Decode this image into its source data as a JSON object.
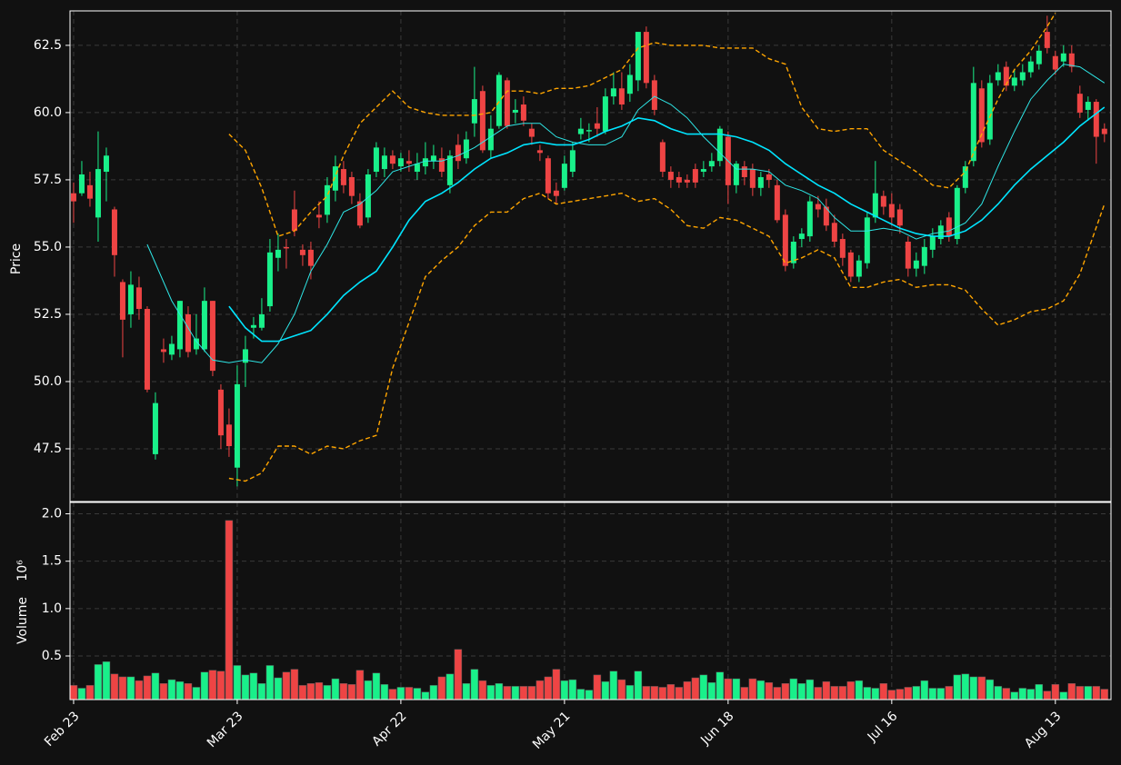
{
  "chart_data": [
    {
      "type": "candlestick",
      "ylabel": "Price",
      "grid": true,
      "ylim": [
        45.54,
        63.78
      ],
      "yticks": [
        47.5,
        {
          "value": 50,
          "label": "50.0"
        },
        52.5,
        {
          "value": 55,
          "label": "55.0"
        },
        57.5,
        {
          "value": 60,
          "label": "60.0"
        },
        62.5
      ],
      "xlim": [
        -0.44,
        126.8
      ],
      "up_color": "#19f08a",
      "down_color": "#ee4444",
      "open": [
        57.0,
        57.0,
        57.3,
        56.1,
        57.8,
        56.4,
        53.7,
        52.5,
        53.5,
        52.7,
        47.3,
        51.2,
        51.0,
        51.2,
        52.5,
        51.2,
        51.2,
        53.0,
        49.7,
        48.4,
        46.8,
        50.7,
        52.0,
        52.0,
        52.8,
        54.6,
        55.0,
        56.4,
        54.9,
        54.9,
        56.2,
        56.2,
        57.1,
        57.9,
        57.6,
        56.7,
        56.1,
        57.8,
        57.9,
        58.4,
        58.0,
        58.2,
        57.8,
        58.0,
        58.2,
        58.3,
        57.3,
        58.8,
        58.3,
        59.6,
        60.8,
        58.6,
        59.5,
        61.2,
        60.0,
        60.3,
        59.4,
        58.6,
        58.3,
        57.1,
        57.2,
        57.8,
        59.2,
        59.3,
        59.6,
        59.3,
        60.6,
        60.9,
        60.7,
        61.2,
        63.0,
        61.2,
        58.9,
        57.8,
        57.6,
        57.5,
        57.9,
        57.8,
        58.0,
        58.2,
        59.1,
        57.3,
        58.0,
        57.9,
        57.2,
        57.7,
        57.3,
        56.2,
        54.4,
        55.3,
        55.4,
        56.6,
        56.5,
        55.9,
        55.3,
        54.8,
        53.9,
        54.4,
        56.1,
        56.9,
        56.6,
        56.4,
        55.2,
        54.2,
        54.3,
        54.9,
        55.3,
        56.1,
        55.3,
        57.2,
        58.2,
        60.9,
        59.0,
        61.2,
        61.7,
        61.0,
        61.2,
        61.5,
        61.8,
        63.0,
        62.1,
        61.9,
        62.2,
        60.7,
        60.1,
        60.4,
        59.4
      ],
      "high": [
        57.4,
        58.2,
        57.8,
        59.3,
        58.7,
        56.5,
        53.8,
        54.1,
        53.9,
        52.8,
        49.6,
        51.6,
        51.7,
        53.0,
        52.8,
        52.5,
        53.5,
        53.0,
        49.9,
        49.0,
        50.6,
        51.7,
        52.4,
        53.1,
        55.3,
        55.5,
        55.3,
        57.1,
        55.1,
        55.2,
        56.7,
        57.6,
        58.4,
        58.2,
        57.8,
        57.0,
        57.9,
        58.9,
        58.7,
        58.6,
        58.5,
        58.6,
        58.5,
        58.9,
        58.8,
        58.7,
        58.6,
        59.2,
        59.3,
        61.7,
        61.0,
        59.9,
        61.5,
        61.3,
        60.5,
        60.6,
        59.6,
        58.8,
        58.4,
        57.4,
        58.4,
        58.9,
        59.8,
        59.6,
        60.2,
        60.9,
        61.5,
        61.5,
        61.8,
        63.0,
        63.2,
        61.4,
        59.0,
        58.0,
        57.8,
        57.7,
        58.1,
        58.2,
        58.5,
        59.5,
        59.3,
        58.2,
        58.2,
        58.1,
        57.8,
        57.9,
        57.5,
        56.4,
        55.4,
        55.7,
        56.9,
        56.9,
        56.8,
        56.2,
        55.5,
        54.9,
        54.7,
        56.3,
        58.2,
        57.1,
        57.0,
        56.6,
        55.4,
        54.8,
        55.3,
        55.7,
        56.0,
        56.3,
        57.3,
        58.2,
        61.7,
        61.2,
        61.4,
        61.8,
        61.9,
        61.6,
        61.8,
        62.1,
        62.5,
        63.6,
        62.3,
        62.5,
        62.5,
        61.0,
        60.6,
        60.5,
        59.6
      ],
      "low": [
        55.9,
        56.9,
        56.5,
        55.2,
        56.7,
        53.9,
        50.9,
        52.0,
        52.3,
        49.6,
        47.1,
        50.7,
        50.8,
        50.9,
        50.9,
        51.0,
        51.1,
        50.2,
        47.5,
        47.2,
        46.1,
        49.8,
        51.6,
        51.9,
        52.6,
        54.1,
        54.2,
        55.4,
        54.3,
        53.8,
        55.7,
        55.9,
        56.7,
        57.0,
        56.6,
        55.7,
        55.9,
        57.6,
        57.6,
        57.9,
        57.8,
        57.8,
        57.5,
        57.7,
        57.9,
        57.6,
        57.0,
        57.9,
        58.1,
        59.1,
        58.5,
        58.3,
        59.4,
        59.4,
        59.6,
        59.5,
        58.8,
        58.2,
        56.8,
        56.6,
        57.1,
        57.6,
        59.0,
        58.9,
        59.1,
        59.2,
        60.3,
        60.1,
        60.4,
        60.8,
        60.9,
        59.9,
        57.6,
        57.2,
        57.2,
        57.2,
        57.2,
        57.6,
        57.8,
        58.0,
        56.6,
        57.0,
        57.3,
        56.9,
        56.9,
        57.2,
        55.9,
        54.1,
        54.2,
        55.0,
        55.2,
        56.1,
        55.6,
        55.0,
        54.3,
        53.7,
        53.7,
        54.2,
        55.9,
        56.2,
        55.8,
        55.5,
        53.9,
        53.9,
        54.0,
        54.6,
        55.1,
        55.2,
        55.1,
        57.0,
        58.0,
        58.7,
        58.8,
        61.0,
        60.8,
        60.8,
        61.0,
        61.3,
        61.6,
        62.2,
        61.4,
        61.7,
        61.5,
        59.8,
        59.7,
        58.1,
        58.9
      ],
      "close": [
        56.7,
        57.7,
        56.8,
        57.9,
        58.4,
        54.7,
        52.3,
        53.6,
        52.7,
        49.7,
        49.2,
        51.1,
        51.4,
        53.0,
        51.1,
        51.6,
        53.0,
        50.4,
        48.0,
        47.6,
        49.9,
        51.2,
        52.1,
        52.5,
        54.8,
        54.9,
        54.95,
        55.6,
        54.7,
        54.3,
        56.1,
        57.3,
        58.0,
        57.3,
        56.9,
        55.8,
        57.7,
        58.7,
        58.4,
        58.1,
        58.3,
        58.1,
        58.1,
        58.3,
        58.4,
        57.8,
        58.4,
        58.2,
        59.0,
        60.5,
        58.6,
        59.4,
        61.4,
        59.5,
        60.1,
        59.7,
        59.1,
        58.5,
        57.0,
        56.9,
        58.1,
        58.6,
        59.4,
        59.35,
        59.4,
        60.6,
        60.9,
        60.3,
        61.4,
        63.0,
        61.1,
        60.1,
        57.8,
        57.5,
        57.4,
        57.4,
        57.4,
        57.9,
        58.2,
        59.4,
        57.3,
        58.1,
        57.6,
        57.2,
        57.6,
        57.5,
        56.0,
        54.3,
        55.2,
        55.5,
        56.7,
        56.4,
        55.8,
        55.2,
        54.6,
        53.9,
        54.5,
        56.1,
        57.0,
        56.5,
        56.1,
        55.8,
        54.2,
        54.5,
        55.0,
        55.4,
        55.8,
        55.4,
        57.2,
        58.0,
        61.1,
        58.9,
        61.1,
        61.5,
        61.0,
        61.3,
        61.5,
        61.9,
        62.3,
        62.4,
        61.6,
        62.2,
        61.7,
        60.0,
        60.4,
        59.1,
        59.2
      ],
      "lines": [
        {
          "color": "#2ee6e6",
          "dashed": false,
          "x": [
            9,
            12,
            15,
            17,
            19,
            21,
            23,
            25,
            27,
            29,
            31,
            33,
            35,
            37,
            39,
            41,
            43,
            45,
            47,
            49,
            51,
            53,
            55,
            57,
            59,
            61,
            63,
            65,
            67,
            69,
            71,
            73,
            75,
            77,
            79,
            81,
            83,
            85,
            87,
            89,
            91,
            93,
            95,
            97,
            99,
            101,
            103,
            105,
            107,
            109,
            111,
            113,
            115,
            117,
            119,
            121,
            123,
            126
          ],
          "values": [
            55.1,
            53.0,
            51.5,
            50.8,
            50.7,
            50.8,
            50.7,
            51.4,
            52.5,
            54.1,
            55.1,
            56.3,
            56.6,
            57.1,
            57.8,
            58.0,
            58.2,
            58.2,
            58.4,
            58.7,
            59.1,
            59.5,
            59.6,
            59.6,
            59.1,
            58.9,
            58.8,
            58.8,
            59.1,
            60.1,
            60.6,
            60.3,
            59.8,
            59.1,
            58.5,
            57.9,
            57.9,
            57.8,
            57.3,
            57.1,
            56.8,
            56.1,
            55.6,
            55.6,
            55.7,
            55.6,
            55.3,
            55.5,
            55.6,
            55.9,
            56.6,
            58.0,
            59.3,
            60.5,
            61.2,
            61.8,
            61.7,
            61.1
          ]
        },
        {
          "color": "#00e5ff",
          "dashed": false,
          "x": [
            19,
            21,
            23,
            25,
            27,
            29,
            31,
            33,
            35,
            37,
            39,
            41,
            43,
            45,
            47,
            49,
            51,
            53,
            55,
            57,
            59,
            61,
            63,
            65,
            67,
            69,
            71,
            73,
            75,
            77,
            79,
            81,
            83,
            85,
            87,
            89,
            91,
            93,
            95,
            97,
            99,
            101,
            103,
            105,
            107,
            109,
            111,
            113,
            115,
            117,
            119,
            121,
            123,
            126
          ],
          "values": [
            52.8,
            52.0,
            51.5,
            51.5,
            51.7,
            51.9,
            52.5,
            53.2,
            53.7,
            54.1,
            55.0,
            56.0,
            56.7,
            57.0,
            57.4,
            57.9,
            58.3,
            58.5,
            58.8,
            58.9,
            58.8,
            58.8,
            59.0,
            59.3,
            59.5,
            59.8,
            59.7,
            59.4,
            59.2,
            59.2,
            59.2,
            59.1,
            58.9,
            58.6,
            58.1,
            57.7,
            57.3,
            57.0,
            56.6,
            56.3,
            56.0,
            55.7,
            55.5,
            55.4,
            55.4,
            55.6,
            56.0,
            56.6,
            57.3,
            57.9,
            58.4,
            58.9,
            59.5,
            60.2
          ]
        },
        {
          "color": "#ffa500",
          "dashed": true,
          "x": [
            19,
            21,
            23,
            25,
            27,
            29,
            31,
            33,
            35,
            37,
            39,
            41,
            43,
            45,
            47,
            49,
            51,
            53,
            55,
            57,
            59,
            61,
            63,
            65,
            67,
            69,
            71,
            73,
            75,
            77,
            79,
            81,
            83,
            85,
            87,
            89,
            91,
            93,
            95,
            97,
            99,
            101,
            103,
            105,
            107,
            109,
            111,
            113,
            115,
            117,
            119,
            120
          ],
          "values": [
            59.2,
            58.6,
            57.2,
            55.4,
            55.6,
            56.3,
            56.9,
            58.4,
            59.6,
            60.2,
            60.8,
            60.2,
            60.0,
            59.9,
            59.9,
            59.9,
            60.0,
            60.8,
            60.8,
            60.7,
            60.9,
            60.9,
            61.0,
            61.3,
            61.6,
            62.4,
            62.6,
            62.5,
            62.5,
            62.5,
            62.4,
            62.4,
            62.4,
            62.0,
            61.8,
            60.2,
            59.4,
            59.3,
            59.4,
            59.4,
            58.6,
            58.2,
            57.8,
            57.3,
            57.2,
            57.8,
            59.2,
            60.5,
            61.6,
            62.3,
            63.2,
            63.7
          ]
        },
        {
          "color": "#ffa500",
          "dashed": true,
          "x": [
            19,
            21,
            23,
            25,
            27,
            29,
            31,
            33,
            35,
            37,
            39,
            41,
            43,
            45,
            47,
            49,
            51,
            53,
            55,
            57,
            59,
            61,
            63,
            65,
            67,
            69,
            71,
            73,
            75,
            77,
            79,
            81,
            83,
            85,
            87,
            89,
            91,
            93,
            95,
            97,
            99,
            101,
            103,
            105,
            107,
            109,
            111,
            113,
            115,
            117,
            119,
            121,
            123,
            126
          ],
          "values": [
            46.4,
            46.3,
            46.6,
            47.6,
            47.6,
            47.3,
            47.6,
            47.5,
            47.8,
            48.0,
            50.5,
            52.2,
            53.9,
            54.5,
            55.0,
            55.8,
            56.3,
            56.3,
            56.8,
            57.0,
            56.6,
            56.7,
            56.8,
            56.9,
            57.0,
            56.7,
            56.8,
            56.4,
            55.8,
            55.7,
            56.1,
            56.0,
            55.7,
            55.4,
            54.4,
            54.6,
            54.9,
            54.6,
            53.5,
            53.5,
            53.7,
            53.8,
            53.5,
            53.6,
            53.6,
            53.4,
            52.7,
            52.1,
            52.3,
            52.6,
            52.7,
            53.0,
            54.0,
            56.6
          ]
        }
      ]
    },
    {
      "type": "bar",
      "ylabel": "Volume",
      "y_offset_label": "10⁶",
      "grid": true,
      "ylim": [
        0.04,
        2.12
      ],
      "yticks": [
        0.5,
        {
          "value": 1,
          "label": "1.0"
        },
        1.5,
        {
          "value": 2,
          "label": "2.0"
        }
      ],
      "xlim": [
        -0.44,
        126.8
      ],
      "xticks": [
        {
          "value": 0,
          "label": "Feb 23"
        },
        {
          "value": 20,
          "label": "Mar 23"
        },
        {
          "value": 40,
          "label": "Apr 22"
        },
        {
          "value": 60,
          "label": "May 21"
        },
        {
          "value": 80,
          "label": "Jun 18"
        },
        {
          "value": 100,
          "label": "Jul 16"
        },
        {
          "value": 120,
          "label": "Aug 13"
        }
      ],
      "values": [
        0.19,
        0.16,
        0.19,
        0.41,
        0.44,
        0.31,
        0.28,
        0.28,
        0.24,
        0.29,
        0.32,
        0.21,
        0.25,
        0.23,
        0.21,
        0.17,
        0.33,
        0.35,
        0.34,
        1.93,
        0.4,
        0.3,
        0.32,
        0.21,
        0.4,
        0.27,
        0.33,
        0.36,
        0.19,
        0.21,
        0.22,
        0.19,
        0.26,
        0.21,
        0.2,
        0.35,
        0.24,
        0.32,
        0.2,
        0.15,
        0.17,
        0.17,
        0.16,
        0.12,
        0.19,
        0.28,
        0.31,
        0.57,
        0.21,
        0.36,
        0.24,
        0.19,
        0.21,
        0.18,
        0.18,
        0.18,
        0.18,
        0.24,
        0.28,
        0.36,
        0.24,
        0.25,
        0.15,
        0.14,
        0.3,
        0.23,
        0.34,
        0.25,
        0.19,
        0.34,
        0.18,
        0.18,
        0.17,
        0.2,
        0.17,
        0.23,
        0.27,
        0.3,
        0.22,
        0.33,
        0.26,
        0.26,
        0.17,
        0.26,
        0.24,
        0.22,
        0.17,
        0.21,
        0.26,
        0.21,
        0.25,
        0.17,
        0.23,
        0.18,
        0.18,
        0.23,
        0.24,
        0.17,
        0.16,
        0.21,
        0.14,
        0.15,
        0.17,
        0.18,
        0.24,
        0.16,
        0.16,
        0.18,
        0.3,
        0.31,
        0.28,
        0.28,
        0.25,
        0.18,
        0.16,
        0.12,
        0.16,
        0.15,
        0.2,
        0.13,
        0.2,
        0.12,
        0.21,
        0.18,
        0.18,
        0.18,
        0.15
      ]
    }
  ]
}
